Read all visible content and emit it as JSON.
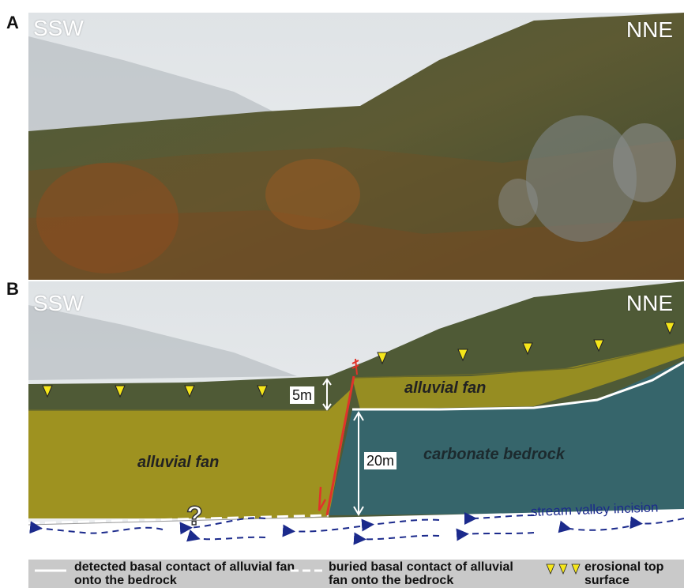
{
  "panel_a": {
    "label": "A",
    "left_direction": "SSW",
    "right_direction": "NNE"
  },
  "panel_b": {
    "label": "B",
    "left_direction": "SSW",
    "right_direction": "NNE",
    "unit_left": "alluvial fan",
    "unit_upper_right": "alluvial fan",
    "unit_bedrock": "carbonate bedrock",
    "scale_small": "5m",
    "scale_large": "20m",
    "question_mark": "?",
    "stream_label": "stream valley incision"
  },
  "legend": {
    "detected_contact": "detected basal contact of alluvial fan onto the bedrock",
    "buried_contact": "buried basal contact of alluvial fan onto the bedrock",
    "erosional_surface": "erosional top surface"
  },
  "colors": {
    "fan": "#b5a21a",
    "bedrock": "#2c6a80",
    "fault": "#e0332a",
    "arrows": "#1b2a8c",
    "triangle": "#f5e61a"
  }
}
